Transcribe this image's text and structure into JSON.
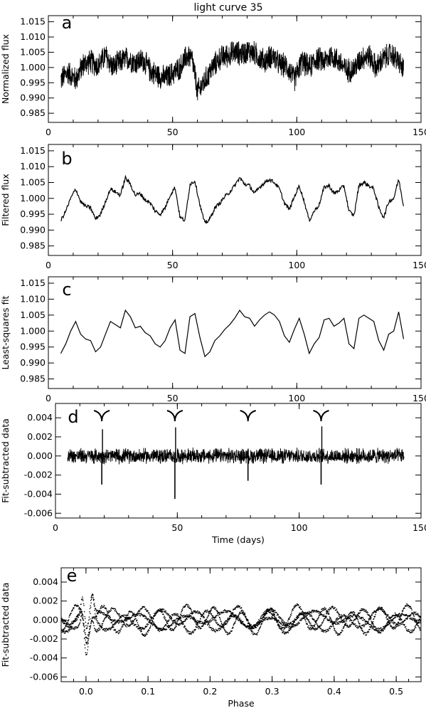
{
  "figure": {
    "title": "light curve 35"
  },
  "chart_data": [
    {
      "type": "line",
      "panel_letter": "a",
      "ylabel": "Normalized flux",
      "xlabel": "",
      "xlim": [
        0,
        150
      ],
      "ylim": [
        0.982,
        1.017
      ],
      "xticks": [
        0,
        50,
        100,
        150
      ],
      "yticks": [
        0.985,
        0.99,
        0.995,
        1.0,
        1.005,
        1.01,
        1.015
      ],
      "ytick_labels": [
        "0.985",
        "0.990",
        "0.995",
        "1.000",
        "1.005",
        "1.010",
        "1.015"
      ],
      "series": [
        {
          "x": [
            5,
            8,
            11,
            14,
            17,
            20,
            23,
            26,
            29,
            32,
            35,
            38,
            41,
            44,
            47,
            50,
            53,
            56,
            58,
            60,
            63,
            66,
            69,
            72,
            75,
            78,
            81,
            84,
            87,
            90,
            93,
            96,
            99,
            102,
            105,
            108,
            111,
            114,
            117,
            120,
            123,
            126,
            129,
            132,
            135,
            138,
            141,
            143
          ],
          "y": [
            0.996,
            0.9985,
            0.996,
            1.001,
            1.002,
            1.0005,
            1.004,
            1.0,
            1.002,
            1.003,
            1.0015,
            1.0025,
            0.999,
            0.9975,
            0.9965,
            0.998,
            1.0,
            1.004,
            1.0025,
            0.992,
            0.9955,
            1.0,
            1.003,
            1.004,
            1.005,
            1.0045,
            1.0055,
            1.004,
            1.002,
            1.004,
            1.001,
            1.0005,
            0.996,
            1.002,
            1.0,
            1.003,
            1.002,
            1.004,
            1.002,
            0.999,
            0.9995,
            1.003,
            1.004,
            1.0,
            1.003,
            1.0045,
            1.002,
            0.999
          ],
          "noise_amplitude": 0.0045
        }
      ]
    },
    {
      "type": "line",
      "panel_letter": "b",
      "ylabel": "Filtered flux",
      "xlabel": "",
      "xlim": [
        0,
        150
      ],
      "ylim": [
        0.982,
        1.017
      ],
      "xticks": [
        0,
        50,
        100,
        150
      ],
      "yticks": [
        0.985,
        0.99,
        0.995,
        1.0,
        1.005,
        1.01,
        1.015
      ],
      "ytick_labels": [
        "0.985",
        "0.990",
        "0.995",
        "1.000",
        "1.005",
        "1.010",
        "1.015"
      ],
      "series": [
        {
          "x": [
            5,
            7,
            9,
            11,
            13,
            15,
            17,
            19,
            21,
            23,
            25,
            27,
            29,
            31,
            33,
            35,
            37,
            39,
            41,
            43,
            45,
            47,
            49,
            51,
            53,
            55,
            57,
            59,
            61,
            63,
            65,
            67,
            69,
            71,
            73,
            75,
            77,
            79,
            81,
            83,
            85,
            87,
            89,
            91,
            93,
            95,
            97,
            99,
            101,
            103,
            105,
            107,
            109,
            111,
            113,
            115,
            117,
            119,
            121,
            123,
            125,
            127,
            129,
            131,
            133,
            135,
            137,
            139,
            141,
            143
          ],
          "y": [
            0.993,
            0.996,
            1.0,
            1.003,
            0.999,
            0.9975,
            0.997,
            0.9935,
            0.995,
            0.999,
            1.003,
            1.002,
            1.001,
            1.0065,
            1.0045,
            1.001,
            1.0015,
            0.9995,
            0.9985,
            0.996,
            0.995,
            0.997,
            1.001,
            1.0035,
            0.994,
            0.993,
            1.0045,
            1.0055,
            0.998,
            0.992,
            0.9935,
            0.997,
            0.9985,
            1.0005,
            1.002,
            1.004,
            1.0065,
            1.0045,
            1.004,
            1.0015,
            1.0035,
            1.005,
            1.006,
            1.005,
            1.003,
            0.9985,
            0.9965,
            1.0005,
            1.004,
            0.999,
            0.993,
            0.996,
            0.998,
            1.0035,
            1.004,
            1.0015,
            1.0025,
            1.004,
            0.996,
            0.9945,
            1.004,
            1.005,
            1.004,
            1.003,
            0.997,
            0.994,
            0.999,
            1.0,
            1.006,
            0.9975
          ],
          "noise_amplitude": 0.0006
        }
      ]
    },
    {
      "type": "line",
      "panel_letter": "c",
      "ylabel": "Least-squares fit",
      "xlabel": "",
      "xlim": [
        0,
        150
      ],
      "ylim": [
        0.982,
        1.017
      ],
      "xticks": [
        0,
        50,
        100,
        150
      ],
      "yticks": [
        0.985,
        0.99,
        0.995,
        1.0,
        1.005,
        1.01,
        1.015
      ],
      "ytick_labels": [
        "0.985",
        "0.990",
        "0.995",
        "1.000",
        "1.005",
        "1.010",
        "1.015"
      ],
      "series": [
        {
          "x": [
            5,
            7,
            9,
            11,
            13,
            15,
            17,
            19,
            21,
            23,
            25,
            27,
            29,
            31,
            33,
            35,
            37,
            39,
            41,
            43,
            45,
            47,
            49,
            51,
            53,
            55,
            57,
            59,
            61,
            63,
            65,
            67,
            69,
            71,
            73,
            75,
            77,
            79,
            81,
            83,
            85,
            87,
            89,
            91,
            93,
            95,
            97,
            99,
            101,
            103,
            105,
            107,
            109,
            111,
            113,
            115,
            117,
            119,
            121,
            123,
            125,
            127,
            129,
            131,
            133,
            135,
            137,
            139,
            141,
            143
          ],
          "y": [
            0.993,
            0.996,
            1.0,
            1.003,
            0.999,
            0.9975,
            0.997,
            0.9935,
            0.995,
            0.999,
            1.003,
            1.002,
            1.001,
            1.0065,
            1.0045,
            1.001,
            1.0015,
            0.9995,
            0.9985,
            0.996,
            0.995,
            0.997,
            1.001,
            1.0035,
            0.994,
            0.993,
            1.0045,
            1.0055,
            0.998,
            0.992,
            0.9935,
            0.997,
            0.9985,
            1.0005,
            1.002,
            1.004,
            1.0065,
            1.0045,
            1.004,
            1.0015,
            1.0035,
            1.005,
            1.006,
            1.005,
            1.003,
            0.9985,
            0.9965,
            1.0005,
            1.004,
            0.999,
            0.993,
            0.996,
            0.998,
            1.0035,
            1.004,
            1.0015,
            1.0025,
            1.004,
            0.996,
            0.9945,
            1.004,
            1.005,
            1.004,
            1.003,
            0.997,
            0.994,
            0.999,
            1.0,
            1.006,
            0.9975
          ]
        }
      ]
    },
    {
      "type": "line",
      "panel_letter": "d",
      "ylabel": "Fit-subtracted data",
      "xlabel": "Time (days)",
      "xlim": [
        0,
        150
      ],
      "ylim": [
        -0.0065,
        0.0055
      ],
      "xticks": [
        0,
        50,
        100,
        150
      ],
      "yticks": [
        -0.006,
        -0.004,
        -0.002,
        0.0,
        0.002,
        0.004
      ],
      "ytick_labels": [
        "-0.006",
        "-0.004",
        "-0.002",
        "0.000",
        "0.002",
        "0.004"
      ],
      "markers_x": [
        19,
        49,
        79,
        109
      ],
      "series": [
        {
          "x": [
            5,
            143
          ],
          "y": [
            0.0,
            0.0
          ],
          "noise_amplitude": 0.0009,
          "dips": [
            {
              "x": 19,
              "y": -0.003
            },
            {
              "x": 49,
              "y": -0.0045
            },
            {
              "x": 79,
              "y": -0.0026
            },
            {
              "x": 109,
              "y": -0.003
            }
          ],
          "spikes": [
            {
              "x": 19,
              "y": 0.0028
            },
            {
              "x": 49,
              "y": 0.003
            },
            {
              "x": 109,
              "y": 0.0031
            }
          ]
        }
      ]
    },
    {
      "type": "scatter",
      "panel_letter": "e",
      "ylabel": "Fit-subtracted data",
      "xlabel": "Phase",
      "xlim": [
        -0.04,
        0.54
      ],
      "ylim": [
        -0.0065,
        0.0055
      ],
      "xticks": [
        0.0,
        0.1,
        0.2,
        0.3,
        0.4,
        0.5
      ],
      "xtick_labels": [
        "0.0",
        "0.1",
        "0.2",
        "0.3",
        "0.4",
        "0.5"
      ],
      "yticks": [
        -0.006,
        -0.004,
        -0.002,
        0.0,
        0.002,
        0.004
      ],
      "ytick_labels": [
        "-0.006",
        "-0.004",
        "-0.002",
        "0.000",
        "0.002",
        "0.004"
      ],
      "series": [
        {
          "x": [
            -0.04,
            0.54
          ],
          "y": [
            0.0,
            0.0
          ],
          "noise_amplitude": 0.0012,
          "dip": {
            "x": 0.0,
            "y": -0.0042
          },
          "peaks": [
            {
              "x": -0.005,
              "y": 0.0035
            },
            {
              "x": 0.01,
              "y": 0.0032
            }
          ]
        }
      ]
    }
  ]
}
